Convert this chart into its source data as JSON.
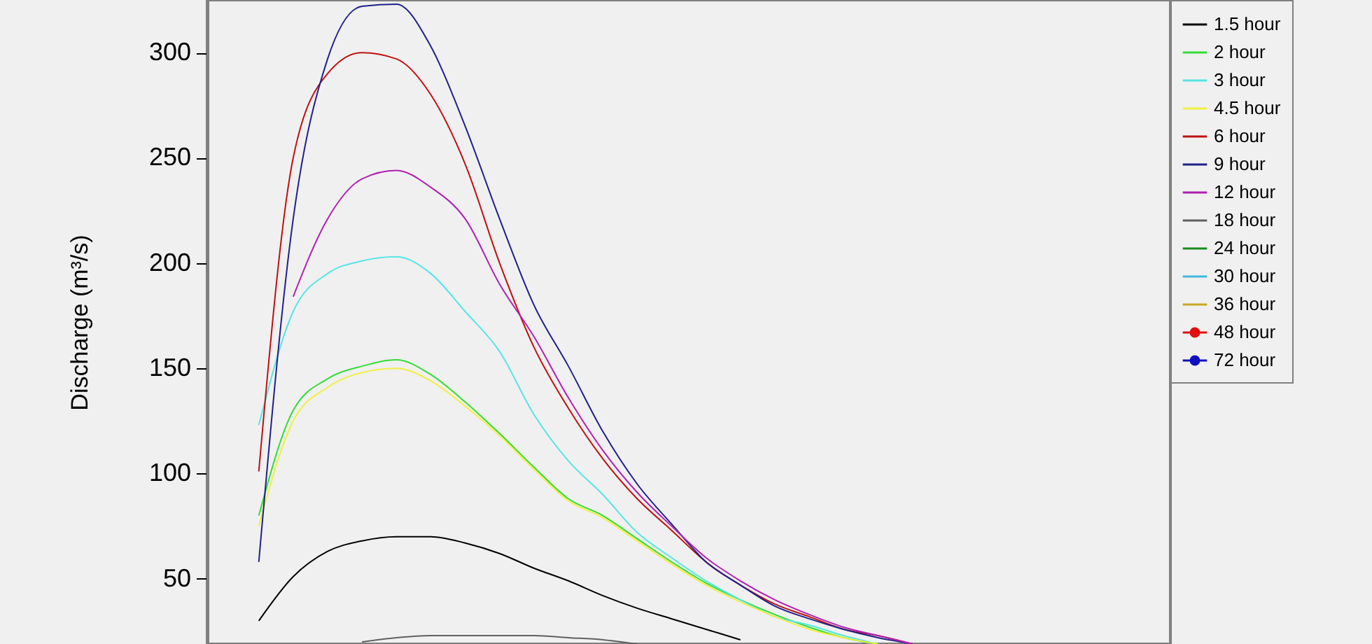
{
  "chart_data": {
    "type": "line",
    "ylabel": "Discharge (m³/s)",
    "ylim": [
      19,
      325
    ],
    "yticks": [
      50,
      100,
      150,
      200,
      250,
      300
    ],
    "tick_labels": "y",
    "legend": "top right",
    "line_style": "solid",
    "categories": [
      null,
      null,
      null,
      null,
      null,
      null,
      null,
      null,
      null,
      null,
      null,
      null,
      null,
      null,
      null,
      null,
      null,
      null,
      null,
      null,
      null,
      null,
      null,
      null,
      null,
      null,
      null,
      null
    ],
    "series": [
      {
        "name": "1.5 hour",
        "color": "#000000",
        "values": [
          null,
          30,
          51,
          63,
          68,
          70,
          70,
          67,
          62,
          55,
          49,
          42,
          36,
          31,
          26,
          21,
          null,
          null,
          null,
          null,
          null,
          null,
          null,
          null,
          null,
          null,
          null,
          null
        ]
      },
      {
        "name": "2 hour",
        "color": "#33dd33",
        "values": [
          null,
          80,
          130,
          145,
          151,
          154,
          147,
          134,
          119,
          103,
          88,
          80,
          69,
          58,
          48,
          40,
          33,
          27,
          22,
          19,
          null,
          null,
          null,
          null,
          null,
          null,
          null,
          null
        ]
      },
      {
        "name": "3 hour",
        "color": "#55e5e5",
        "values": [
          null,
          123,
          177,
          195,
          201,
          203,
          195,
          177,
          158,
          128,
          106,
          90,
          72,
          60,
          49,
          40,
          32,
          28,
          23,
          19,
          null,
          null,
          null,
          null,
          null,
          null,
          null,
          null
        ]
      },
      {
        "name": "4.5 hour",
        "color": "#f0f040",
        "values": [
          null,
          75,
          125,
          141,
          148,
          150,
          144,
          132,
          118,
          102,
          87,
          79,
          68,
          57,
          47,
          39,
          32,
          26,
          22,
          19,
          null,
          null,
          null,
          null,
          null,
          null,
          null,
          null
        ]
      },
      {
        "name": "6 hour",
        "color": "#c01010",
        "values": [
          null,
          101,
          250,
          290,
          300,
          297,
          280,
          247,
          200,
          160,
          131,
          107,
          88,
          73,
          58,
          47,
          38,
          32,
          26,
          23,
          19,
          null,
          null,
          null,
          null,
          null,
          null,
          null
        ]
      },
      {
        "name": "9 hour",
        "color": "#20208a",
        "values": [
          null,
          58,
          221,
          297,
          322,
          323,
          303,
          265,
          221,
          180,
          151,
          120,
          95,
          76,
          58,
          47,
          37,
          31,
          26,
          22,
          19,
          null,
          null,
          null,
          null,
          null,
          null,
          null
        ]
      },
      {
        "name": "12 hour",
        "color": "#b020b0",
        "values": [
          null,
          null,
          184,
          221,
          240,
          244,
          236,
          221,
          190,
          165,
          136,
          111,
          91,
          75,
          60,
          49,
          40,
          33,
          27,
          23,
          19,
          null,
          null,
          null,
          null,
          null,
          null,
          null
        ]
      },
      {
        "name": "18 hour",
        "color": "#606060",
        "values": [
          null,
          null,
          null,
          null,
          20,
          22,
          23,
          23,
          23,
          23,
          22,
          21,
          19,
          null,
          null,
          null,
          null,
          null,
          null,
          null,
          null,
          null,
          null,
          null,
          null,
          null,
          null,
          null
        ]
      },
      {
        "name": "24 hour",
        "color": "#1a8a1a",
        "values": [
          null,
          null,
          null,
          null,
          null,
          null,
          null,
          null,
          null,
          null,
          null,
          null,
          null,
          null,
          null,
          null,
          null,
          null,
          null,
          null,
          null,
          null,
          null,
          null,
          null,
          null,
          null,
          null
        ]
      },
      {
        "name": "30 hour",
        "color": "#40b8e0",
        "values": [
          null,
          null,
          null,
          null,
          null,
          null,
          null,
          null,
          null,
          null,
          null,
          null,
          null,
          null,
          null,
          null,
          null,
          null,
          null,
          null,
          null,
          null,
          null,
          null,
          null,
          null,
          null,
          null
        ]
      },
      {
        "name": "36 hour",
        "color": "#c8a820",
        "values": [
          null,
          null,
          null,
          null,
          null,
          null,
          null,
          null,
          null,
          null,
          null,
          null,
          null,
          null,
          null,
          null,
          null,
          null,
          null,
          null,
          null,
          null,
          null,
          null,
          null,
          null,
          null,
          null
        ]
      },
      {
        "name": "48 hour",
        "color": "#e01010",
        "marker": "circle",
        "values": [
          null,
          null,
          null,
          null,
          null,
          null,
          null,
          null,
          null,
          null,
          null,
          null,
          null,
          null,
          null,
          null,
          null,
          null,
          null,
          null,
          null,
          null,
          null,
          null,
          null,
          null,
          null,
          null
        ]
      },
      {
        "name": "72 hour",
        "color": "#1010c0",
        "marker": "circle",
        "values": [
          null,
          null,
          null,
          null,
          null,
          null,
          null,
          null,
          null,
          null,
          null,
          null,
          null,
          null,
          null,
          null,
          null,
          null,
          null,
          null,
          null,
          null,
          null,
          null,
          null,
          null,
          null,
          null
        ]
      }
    ]
  }
}
